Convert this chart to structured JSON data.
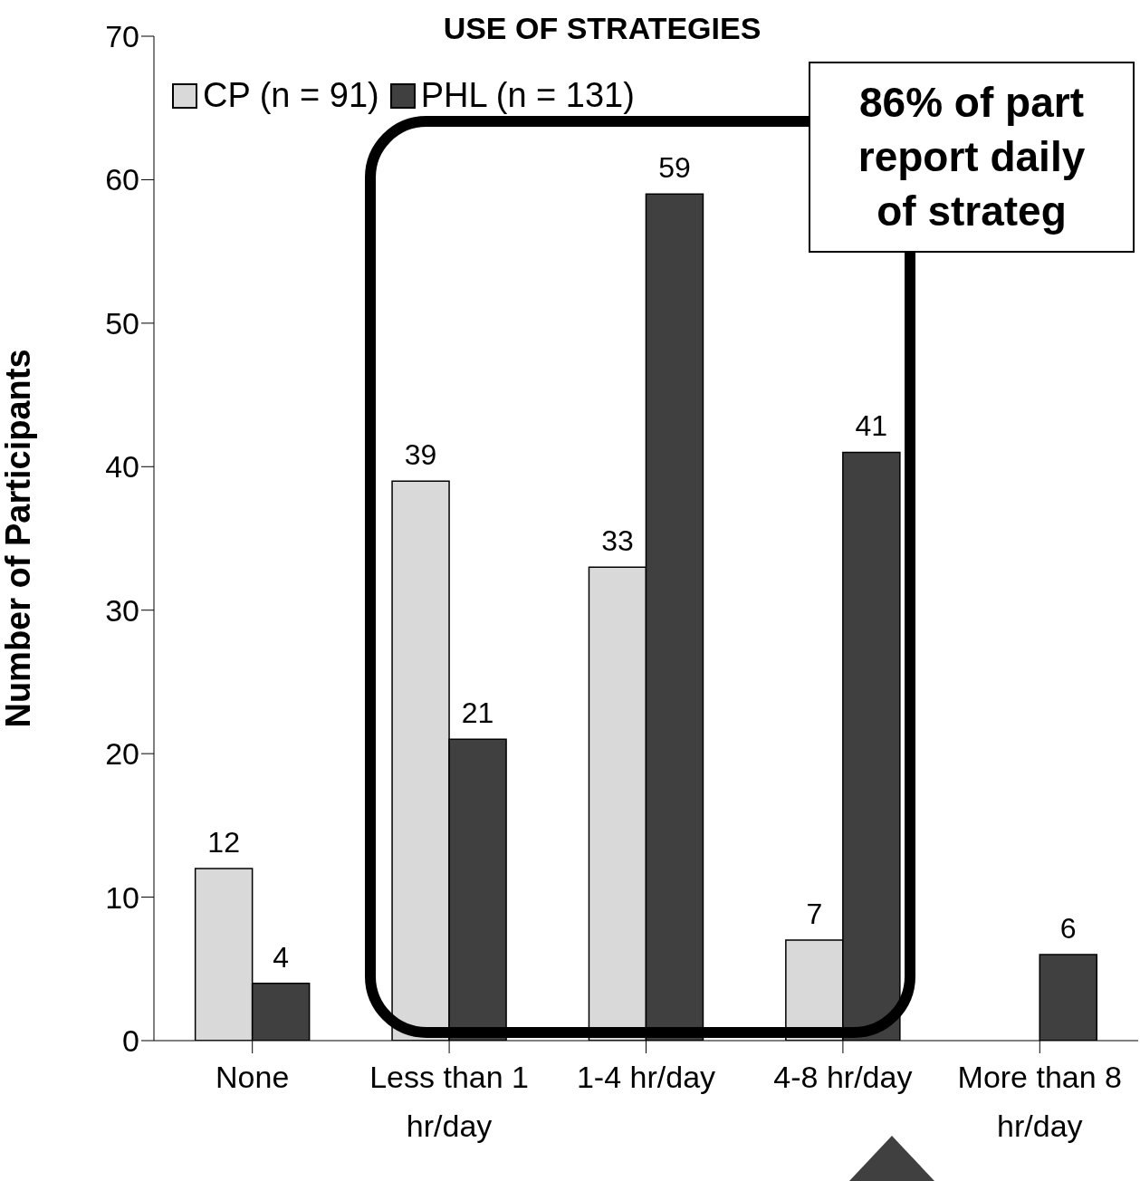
{
  "chart_data": {
    "type": "bar",
    "title": "USE OF STRATEGIES",
    "ylabel": "Number of Participants",
    "categories": [
      "None",
      "Less than 1 hr/day",
      "1-4 hr/day",
      "4-8 hr/day",
      "More than 8 hr/day"
    ],
    "series": [
      {
        "name": "CP (n = 91)",
        "color": "#d9d9d9",
        "values": [
          12,
          39,
          33,
          7,
          0
        ],
        "value_labels": [
          "12",
          "39",
          "33",
          "7",
          null
        ]
      },
      {
        "name": "PHL (n = 131)",
        "color": "#404040",
        "values": [
          4,
          21,
          59,
          41,
          6
        ],
        "value_labels": [
          "4",
          "21",
          "59",
          "41",
          "6"
        ]
      }
    ],
    "ylim": [
      0,
      70
    ],
    "yticks": [
      0,
      10,
      20,
      30,
      40,
      50,
      60,
      70
    ],
    "grid": false,
    "legend": "top left",
    "annotations": [
      "86% of part\nreport daily\nof strateg"
    ]
  }
}
